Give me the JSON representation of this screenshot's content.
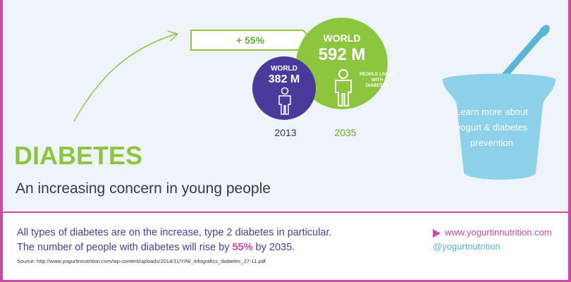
{
  "stats": {
    "increase_label": "+ 55%",
    "world_2035_label": "WORLD",
    "world_2035_value": "592 M",
    "people_label": "PEOPLE LIVING WITH DIABETES",
    "world_2013_label": "WORLD",
    "world_2013_value": "382 M",
    "year_2013": "2013",
    "year_2035": "2035"
  },
  "heading": {
    "title": "DIABETES",
    "subtitle": "An increasing concern in young people"
  },
  "cup": {
    "text": "Learn more about yogurt & diabetes prevention"
  },
  "footer": {
    "line1": "All types of diabetes are on the increase, type 2 diabetes in particular.",
    "line2_prefix": "The number of people with diabetes will rise by",
    "line2_bold": "55%",
    "line2_suffix": "by 2035.",
    "source": "Source: http://www.yogurtinnutrition.com/wp-content/uploads/2014/11/YINI_infografics_diabetes_27-11.pdf",
    "website": "www.yogurtinnutrition.com",
    "handle": "@yogurtnutrition"
  },
  "colors": {
    "green": "#8cc63f",
    "purple": "#4a3a9c",
    "pink": "#cc4aa3",
    "blue": "#5ab4d6"
  },
  "icons": [
    "person-icon",
    "yogurt-cup-icon",
    "curved-arrow-icon",
    "triangle-bullet-icon"
  ]
}
